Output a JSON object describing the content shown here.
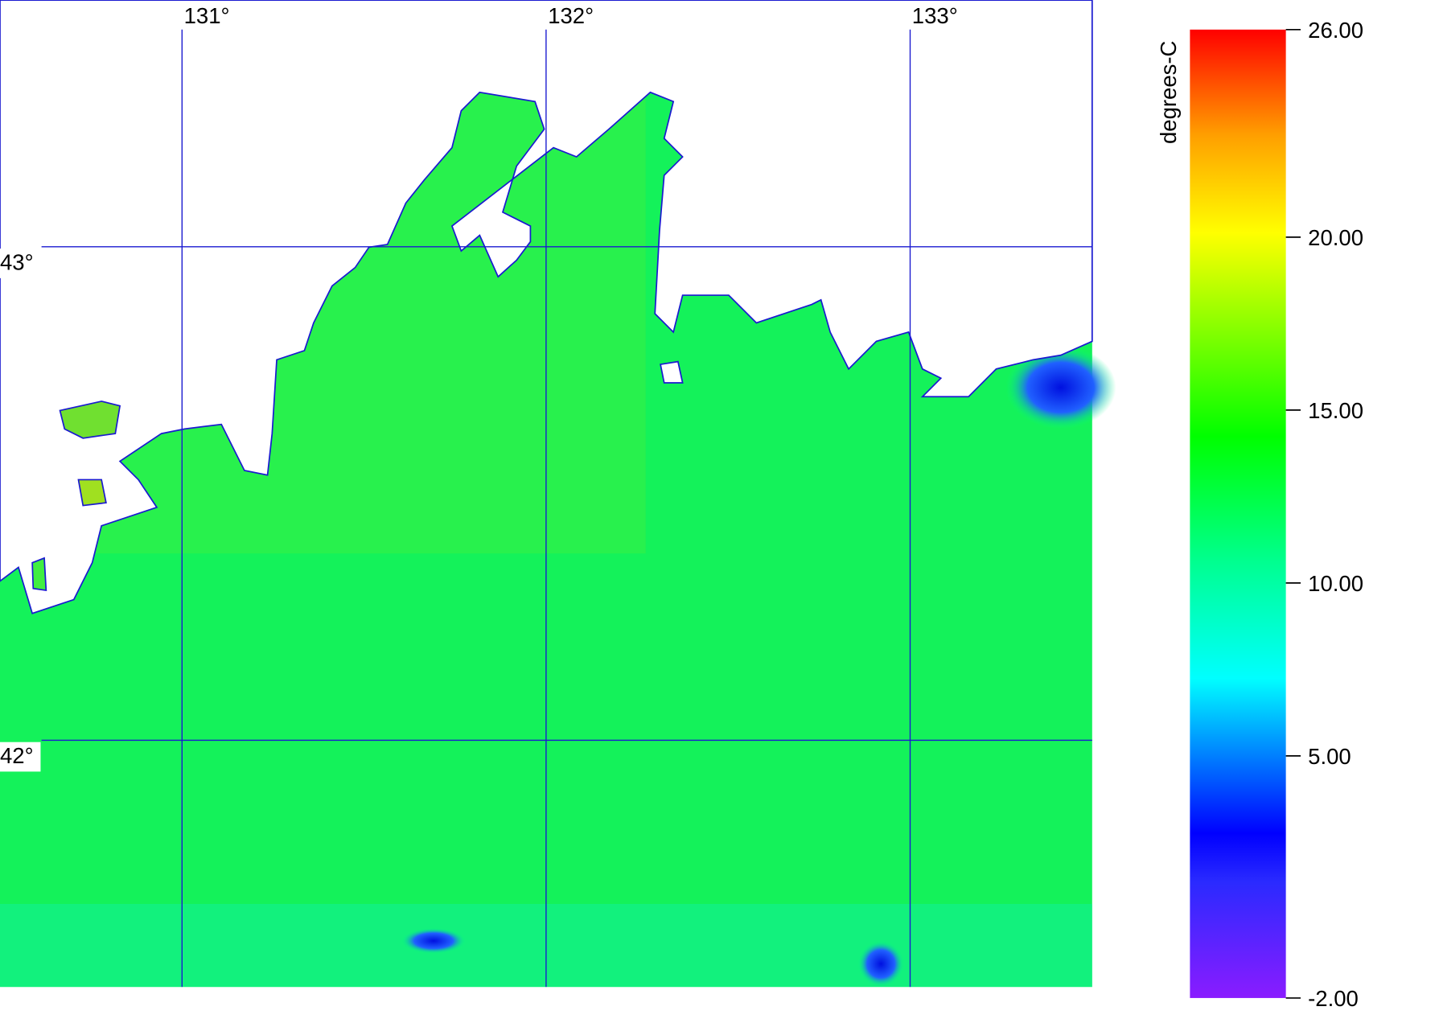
{
  "map": {
    "xlim": [
      130.5,
      133.5
    ],
    "ylim": [
      41.5,
      43.5
    ],
    "xticks": [
      {
        "value": 131,
        "label": "131°"
      },
      {
        "value": 132,
        "label": "132°"
      },
      {
        "value": 133,
        "label": "133°"
      }
    ],
    "yticks": [
      {
        "value": 42,
        "label": "42°"
      },
      {
        "value": 43,
        "label": "43°"
      }
    ]
  },
  "colorbar": {
    "label": "degrees-C",
    "lim": [
      -2,
      26
    ],
    "ticks": [
      {
        "value": -2,
        "label": "-2.00"
      },
      {
        "value": 5,
        "label": "5.00"
      },
      {
        "value": 10,
        "label": "10.00"
      },
      {
        "value": 15,
        "label": "15.00"
      },
      {
        "value": 20,
        "label": "20.00"
      },
      {
        "value": 26,
        "label": "26.00"
      }
    ]
  }
}
